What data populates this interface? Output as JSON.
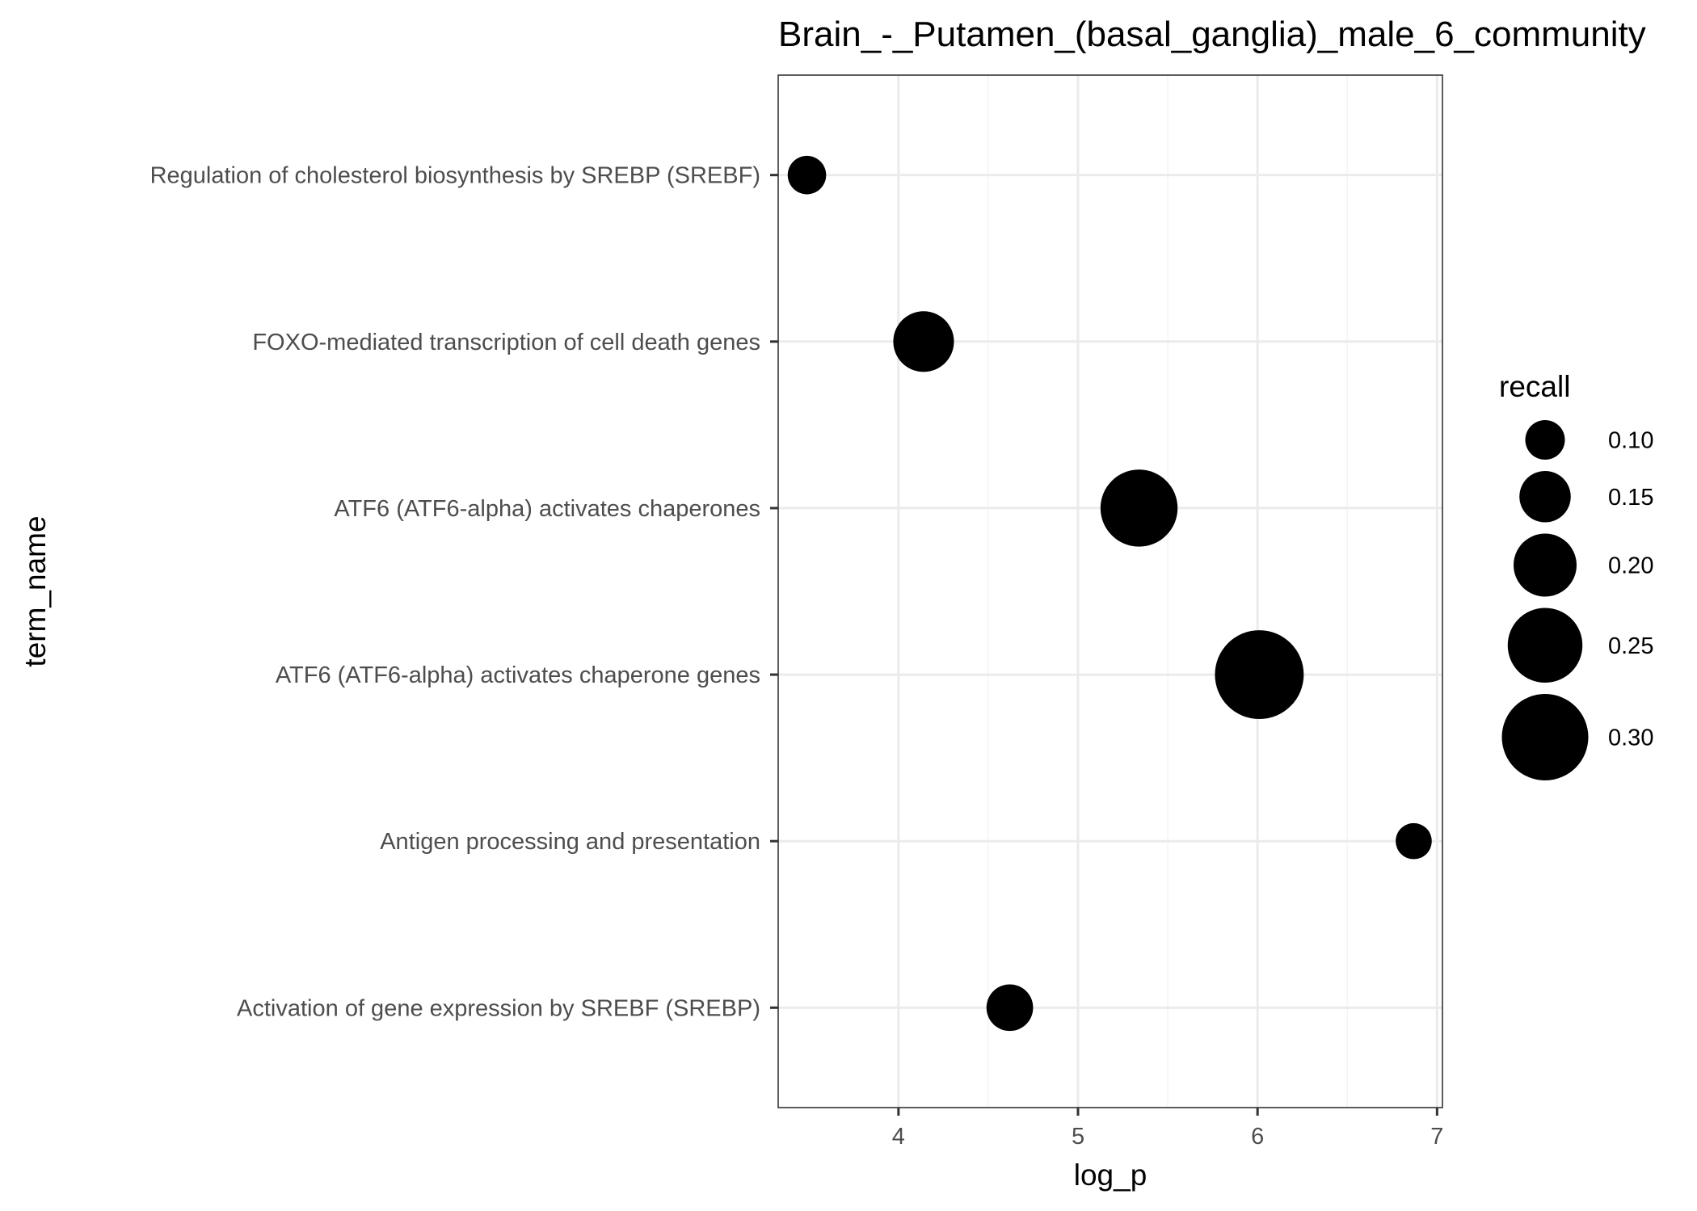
{
  "chart_data": {
    "type": "scatter",
    "title": "Brain_-_Putamen_(basal_ganglia)_male_6_community",
    "xlabel": "log_p",
    "ylabel": "term_name",
    "xlim": [
      3.33,
      7.03
    ],
    "xticks": [
      "4",
      "5",
      "6",
      "7"
    ],
    "grid": true,
    "legend_position": "right",
    "size_legend": {
      "title": "recall",
      "entries": [
        {
          "label": "0.10",
          "value": 0.1
        },
        {
          "label": "0.15",
          "value": 0.15
        },
        {
          "label": "0.20",
          "value": 0.2
        },
        {
          "label": "0.25",
          "value": 0.25
        },
        {
          "label": "0.30",
          "value": 0.3
        }
      ]
    },
    "categories": [
      "Activation of gene expression by SREBF (SREBP)",
      "Antigen processing and presentation",
      "ATF6 (ATF6-alpha) activates chaperone genes",
      "ATF6 (ATF6-alpha) activates chaperones",
      "FOXO-mediated transcription of cell death genes",
      "Regulation of cholesterol biosynthesis by SREBP (SREBF)"
    ],
    "points": [
      {
        "term_name": "Regulation of cholesterol biosynthesis by SREBP (SREBF)",
        "log_p": 3.49,
        "recall": 0.095
      },
      {
        "term_name": "FOXO-mediated transcription of cell death genes",
        "log_p": 4.14,
        "recall": 0.19
      },
      {
        "term_name": "ATF6 (ATF6-alpha) activates chaperones",
        "log_p": 5.34,
        "recall": 0.26
      },
      {
        "term_name": "ATF6 (ATF6-alpha) activates chaperone genes",
        "log_p": 6.01,
        "recall": 0.31
      },
      {
        "term_name": "Antigen processing and presentation",
        "log_p": 6.87,
        "recall": 0.085
      },
      {
        "term_name": "Activation of gene expression by SREBF (SREBP)",
        "log_p": 4.62,
        "recall": 0.13
      }
    ],
    "colors": {
      "point": "#000000",
      "panel_border": "#333333",
      "grid_major": "#ebebeb",
      "grid_minor": "#f5f5f5",
      "tick_label": "#4d4d4d"
    }
  }
}
